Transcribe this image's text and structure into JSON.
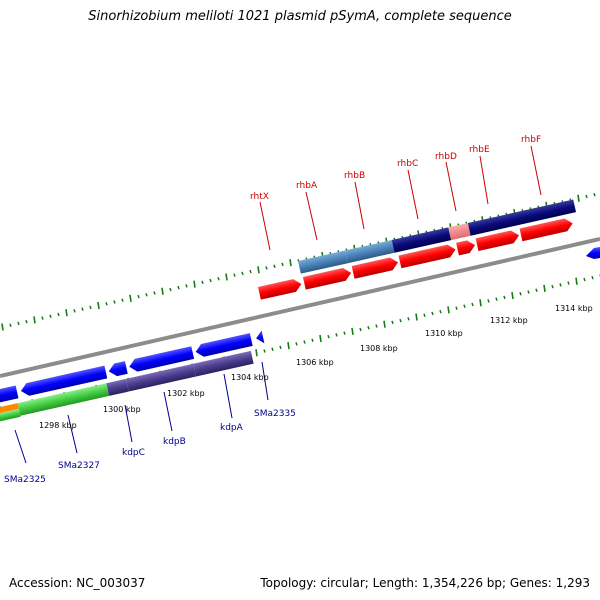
{
  "title": "Sinorhizobium meliloti 1021 plasmid pSymA, complete sequence",
  "footer": {
    "accession": "Accession: NC_003037",
    "topology": "Topology: circular; Length: 1,354,226 bp; Genes: 1,293"
  },
  "scale_labels": [
    "1298 kbp",
    "1300 kbp",
    "1302 kbp",
    "1304 kbp",
    "1306 kbp",
    "1308 kbp",
    "1310 kbp",
    "1312 kbp",
    "1314 kbp"
  ],
  "gene_labels": {
    "forward": [
      "rhtX",
      "rhbA",
      "rhbB",
      "rhbC",
      "rhbD",
      "rhbE",
      "rhbF"
    ],
    "reverse": [
      "SMa2325",
      "SMa2327",
      "kdpC",
      "kdpB",
      "kdpA",
      "SMa2335"
    ]
  },
  "colors": {
    "backbone": "#888888",
    "tick": "#1a7a1a",
    "forward_cds": "#ff0000",
    "reverse_cds": "#0000ff",
    "cog_navy": "#0a0a7a",
    "cog_steel": "#4a82b8",
    "cog_pink": "#f08080",
    "cog_purple": "#4b3c8c",
    "cog_green": "#44cc44",
    "cog_orange": "#ff8800",
    "label_forward": "#cc0000",
    "label_reverse": "#00008b"
  }
}
